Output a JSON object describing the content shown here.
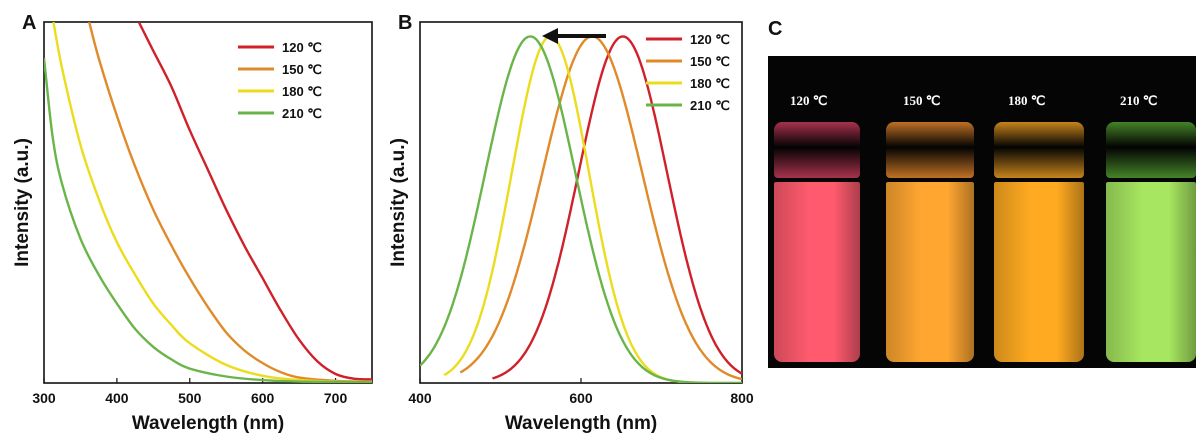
{
  "panels": {
    "A": "A",
    "B": "B",
    "C": "C"
  },
  "chart_data": [
    {
      "type": "line",
      "panel": "A",
      "title": "",
      "xlabel": "Wavelength (nm)",
      "ylabel": "Intensity (a.u.)",
      "xlim": [
        300,
        750
      ],
      "ylim": [
        0,
        1
      ],
      "xticks": [
        300,
        400,
        500,
        600,
        700
      ],
      "legend_position": "top-right",
      "series": [
        {
          "name": "120 ℃",
          "color": "#d0202a",
          "x": [
            430,
            450,
            475,
            500,
            525,
            550,
            575,
            600,
            625,
            650,
            675,
            700,
            725,
            750
          ],
          "y": [
            1.0,
            0.92,
            0.82,
            0.7,
            0.59,
            0.48,
            0.38,
            0.29,
            0.2,
            0.12,
            0.06,
            0.025,
            0.012,
            0.01
          ]
        },
        {
          "name": "150 ℃",
          "color": "#e08a2a",
          "x": [
            362,
            375,
            400,
            425,
            450,
            475,
            500,
            525,
            550,
            575,
            600,
            625,
            650,
            700,
            750
          ],
          "y": [
            1.0,
            0.9,
            0.74,
            0.6,
            0.48,
            0.38,
            0.29,
            0.21,
            0.14,
            0.09,
            0.055,
            0.03,
            0.015,
            0.006,
            0.004
          ]
        },
        {
          "name": "180 ℃",
          "color": "#ecdc1e",
          "x": [
            313,
            325,
            350,
            375,
            400,
            425,
            450,
            475,
            500,
            550,
            600,
            650,
            700,
            750
          ],
          "y": [
            1.0,
            0.87,
            0.66,
            0.51,
            0.39,
            0.3,
            0.22,
            0.16,
            0.11,
            0.05,
            0.02,
            0.008,
            0.004,
            0.003
          ]
        },
        {
          "name": "210 ℃",
          "color": "#6ab54a",
          "x": [
            300,
            312,
            325,
            350,
            375,
            400,
            425,
            450,
            475,
            500,
            550,
            600,
            650,
            700,
            750
          ],
          "y": [
            0.9,
            0.68,
            0.55,
            0.4,
            0.3,
            0.22,
            0.15,
            0.1,
            0.065,
            0.04,
            0.018,
            0.008,
            0.004,
            0.003,
            0.002
          ]
        }
      ]
    },
    {
      "type": "line",
      "panel": "B",
      "title": "",
      "xlabel": "Wavelength (nm)",
      "ylabel": "Intensity (a.u.)",
      "xlim": [
        400,
        800
      ],
      "ylim": [
        0,
        1
      ],
      "xticks": [
        400,
        600,
        800
      ],
      "legend_position": "top-right",
      "arrow_annotation": "left-pointing arrow above peaks",
      "series": [
        {
          "name": "120 ℃",
          "color": "#d0202a",
          "center": 652,
          "width": 55,
          "start": 490
        },
        {
          "name": "150 ℃",
          "color": "#e08a2a",
          "center": 614,
          "width": 62,
          "start": 450
        },
        {
          "name": "180 ℃",
          "color": "#ecdc1e",
          "center": 562,
          "width": 48,
          "start": 430
        },
        {
          "name": "210 ℃",
          "color": "#6ab54a",
          "center": 537,
          "width": 56,
          "start": 400
        }
      ]
    }
  ],
  "photo": {
    "vials": [
      {
        "label": "120 ℃",
        "liquid": "#ff5a6e",
        "cap": "#c43a5a"
      },
      {
        "label": "150 ℃",
        "liquid": "#ffa630",
        "cap": "#e0842a"
      },
      {
        "label": "180 ℃",
        "liquid": "#ffaa20",
        "cap": "#e89a20"
      },
      {
        "label": "210 ℃",
        "liquid": "#a6e660",
        "cap": "#4f9a2e"
      }
    ]
  }
}
